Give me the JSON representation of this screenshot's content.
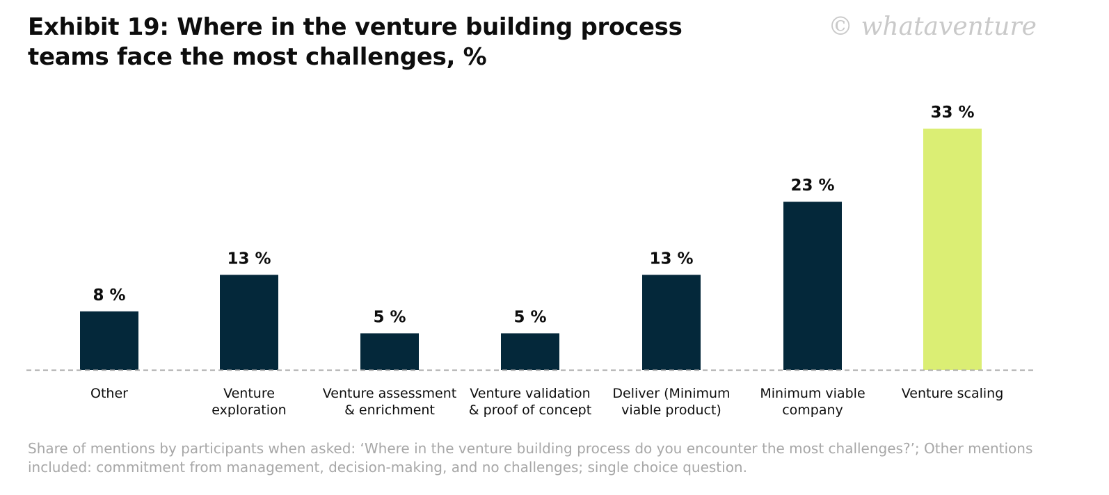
{
  "header": {
    "title": "Exhibit 19: Where in the venture building process teams face the most challenges, %",
    "watermark": "© whataventure"
  },
  "footnote": "Share of mentions by participants when asked: ‘Where in the venture building process do you encounter the most challenges?’; Other mentions included: commitment from management, decision-making, and no challenges; single choice question.",
  "colors": {
    "bar": "#04283a",
    "highlight": "#dbee74",
    "axis": "#a9a9a9",
    "text": "#0d0d0d"
  },
  "chart_data": {
    "type": "bar",
    "title": "Exhibit 19: Where in the venture building process teams face the most challenges, %",
    "categories": [
      [
        "Other"
      ],
      [
        "Venture",
        "exploration"
      ],
      [
        "Venture assessment",
        "& enrichment"
      ],
      [
        "Venture validation",
        "& proof of concept"
      ],
      [
        "Deliver (Minimum",
        "viable product)"
      ],
      [
        "Minimum viable",
        "company"
      ],
      [
        "Venture scaling"
      ]
    ],
    "values": [
      8,
      13,
      5,
      5,
      13,
      23,
      33
    ],
    "value_labels": [
      "8 %",
      "13 %",
      "5 %",
      "5 %",
      "13 %",
      "23 %",
      "33 %"
    ],
    "highlight_index": 6,
    "ylim": [
      0,
      33
    ],
    "grid": false,
    "legend": "none",
    "xlabel": "",
    "ylabel": ""
  }
}
